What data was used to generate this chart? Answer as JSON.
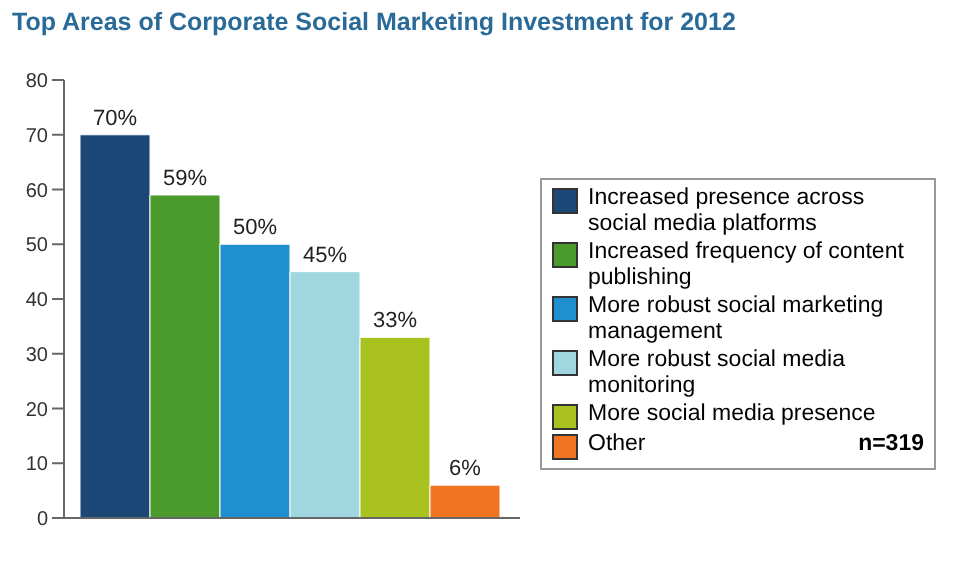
{
  "chart_data": {
    "type": "bar",
    "title": "Top Areas of Corporate Social Marketing Investment for 2012",
    "categories": [
      null
    ],
    "series": [
      {
        "name": "Increased presence across social media platforms",
        "color": "#1b4877",
        "values": [
          70
        ],
        "value_labels": [
          "70%"
        ]
      },
      {
        "name": "Increased frequency of content publishing",
        "color": "#4b9a2c",
        "values": [
          59
        ],
        "value_labels": [
          "59%"
        ]
      },
      {
        "name": "More robust social marketing management",
        "color": "#1f8fd0",
        "values": [
          50
        ],
        "value_labels": [
          "50%"
        ]
      },
      {
        "name": "More robust social media monitoring",
        "color": "#9fd6df",
        "values": [
          45
        ],
        "value_labels": [
          "45%"
        ]
      },
      {
        "name": "More social media presence",
        "color": "#a9c21f",
        "values": [
          33
        ],
        "value_labels": [
          "33%"
        ]
      },
      {
        "name": "Other",
        "color": "#f07421",
        "values": [
          6
        ],
        "value_labels": [
          "6%"
        ]
      }
    ],
    "ylim": [
      0,
      80
    ],
    "yticks": [
      0,
      10,
      20,
      30,
      40,
      50,
      60,
      70,
      80
    ],
    "grid": false,
    "legend": "right",
    "annotations": [
      "n=319"
    ]
  }
}
